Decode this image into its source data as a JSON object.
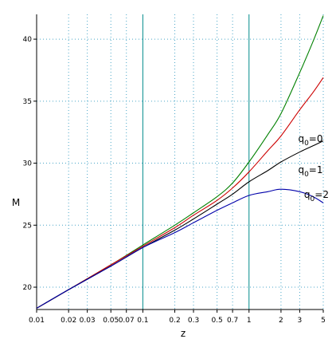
{
  "chart_data": {
    "type": "line",
    "xscale": "log",
    "xlim": [
      0.01,
      5
    ],
    "ylim": [
      18.2,
      42
    ],
    "xlabel": "z",
    "ylabel": "M",
    "grid": true,
    "x_ticks": [
      {
        "value": 0.01,
        "label": "0.01"
      },
      {
        "value": 0.02,
        "label": "0.02"
      },
      {
        "value": 0.03,
        "label": "0.03"
      },
      {
        "value": 0.05,
        "label": "0.05"
      },
      {
        "value": 0.07,
        "label": "0.07"
      },
      {
        "value": 0.1,
        "label": "0.1"
      },
      {
        "value": 0.2,
        "label": "0.2"
      },
      {
        "value": 0.3,
        "label": "0.3"
      },
      {
        "value": 0.5,
        "label": "0.5"
      },
      {
        "value": 0.7,
        "label": "0.7"
      },
      {
        "value": 1,
        "label": "1"
      },
      {
        "value": 2,
        "label": "2"
      },
      {
        "value": 3,
        "label": "3"
      },
      {
        "value": 5,
        "label": "5"
      }
    ],
    "x_strong_gridlines": [
      0.1,
      1
    ],
    "y_ticks": [
      20,
      25,
      30,
      35,
      40
    ],
    "series": [
      {
        "color": "#008000",
        "x": [
          0.01,
          0.02,
          0.05,
          0.1,
          0.2,
          0.3,
          0.5,
          0.7,
          1,
          1.5,
          2,
          3,
          4,
          5
        ],
        "y": [
          18.3,
          19.8,
          21.8,
          23.4,
          25.0,
          26.0,
          27.3,
          28.4,
          30.1,
          32.3,
          34.0,
          37.3,
          39.8,
          41.9
        ]
      },
      {
        "color": "#cc0000",
        "x": [
          0.01,
          0.02,
          0.05,
          0.1,
          0.2,
          0.3,
          0.5,
          0.7,
          1,
          1.5,
          2,
          3,
          4,
          5
        ],
        "y": [
          18.3,
          19.8,
          21.8,
          23.3,
          24.8,
          25.8,
          27.0,
          28.0,
          29.3,
          31.0,
          32.2,
          34.3,
          35.7,
          36.9
        ]
      },
      {
        "color": "#000000",
        "x": [
          0.01,
          0.02,
          0.05,
          0.1,
          0.2,
          0.3,
          0.5,
          0.7,
          1,
          1.5,
          2,
          3,
          4,
          5
        ],
        "y": [
          18.3,
          19.8,
          21.7,
          23.2,
          24.6,
          25.5,
          26.7,
          27.5,
          28.5,
          29.4,
          30.1,
          30.9,
          31.4,
          31.8
        ]
      },
      {
        "color": "#0000aa",
        "x": [
          0.01,
          0.02,
          0.05,
          0.1,
          0.2,
          0.3,
          0.5,
          0.7,
          1,
          1.5,
          2,
          3,
          4,
          5
        ],
        "y": [
          18.3,
          19.8,
          21.7,
          23.2,
          24.4,
          25.2,
          26.2,
          26.8,
          27.4,
          27.7,
          27.9,
          27.7,
          27.3,
          26.8
        ]
      }
    ],
    "annotations": [
      {
        "text": "q",
        "subscript": "0",
        "suffix": "=0",
        "x": 2.9,
        "y": 31.7
      },
      {
        "text": "q",
        "subscript": "0",
        "suffix": "=1",
        "x": 2.9,
        "y": 29.2
      },
      {
        "text": "q",
        "subscript": "0",
        "suffix": "=2",
        "x": 3.3,
        "y": 27.2
      }
    ]
  }
}
